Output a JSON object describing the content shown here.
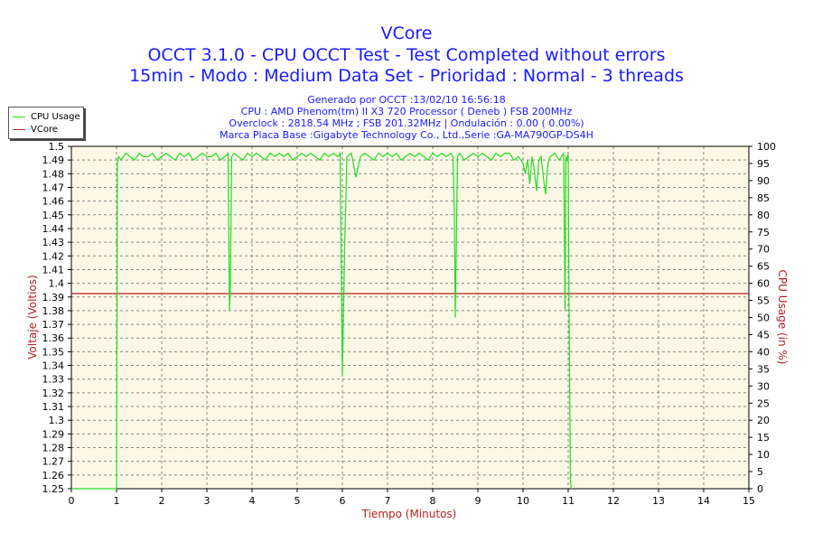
{
  "chart_data": {
    "type": "line",
    "title": "VCore",
    "subtitle_lines": [
      "OCCT 3.1.0 - CPU OCCT Test - Test Completed without errors",
      "15min - Modo : Medium Data Set - Prioridad : Normal - 3 threads"
    ],
    "info_lines": [
      "Generado por OCCT :13/02/10 16:56:18",
      "CPU : AMD Phenom(tm) II X3 720 Processor ( Deneb ) FSB 200MHz",
      "Overclock : 2818.54 MHz ; FSB 201.32MHz | Ondulación : 0.00 ( 0.00%)",
      "Marca Placa Base :Gigabyte Technology Co., Ltd.,Serie :GA-MA790GP-DS4H"
    ],
    "xlabel": "Tiempo (Minutos)",
    "ylabel_left": "Voltaje (Voltios)",
    "ylabel_right": "CPU Usage (in %)",
    "xlim": [
      0,
      15
    ],
    "ylim_left": [
      1.25,
      1.5
    ],
    "ylim_right": [
      0,
      100
    ],
    "x_ticks": [
      "0",
      "1",
      "2",
      "3",
      "4",
      "5",
      "6",
      "7",
      "8",
      "9",
      "10",
      "11",
      "12",
      "13",
      "14",
      "15"
    ],
    "y_ticks_left": [
      "1.25",
      "1.26",
      "1.27",
      "1.28",
      "1.29",
      "1.3",
      "1.31",
      "1.32",
      "1.33",
      "1.34",
      "1.35",
      "1.36",
      "1.37",
      "1.38",
      "1.39",
      "1.4",
      "1.41",
      "1.42",
      "1.43",
      "1.44",
      "1.45",
      "1.46",
      "1.47",
      "1.48",
      "1.49",
      "1.5"
    ],
    "y_ticks_right": [
      "0",
      "5",
      "10",
      "15",
      "20",
      "25",
      "30",
      "35",
      "40",
      "45",
      "50",
      "55",
      "60",
      "65",
      "70",
      "75",
      "80",
      "85",
      "90",
      "95",
      "100"
    ],
    "grid": true,
    "legend_position": "top-left",
    "colors": {
      "cpu": "#22dd22",
      "vcore": "#b22222",
      "text": "#1a1aff",
      "axis_label": "#b22222",
      "plot_bg": "#fcf8e6"
    },
    "series": [
      {
        "name": "CPU Usage",
        "axis": "right",
        "x": [
          0,
          1,
          1.02,
          1.05,
          1.1,
          1.2,
          1.3,
          1.4,
          1.5,
          1.6,
          1.7,
          1.8,
          1.9,
          2.0,
          2.1,
          2.2,
          2.3,
          2.4,
          2.5,
          2.6,
          2.7,
          2.8,
          2.9,
          3.0,
          3.1,
          3.2,
          3.3,
          3.4,
          3.47,
          3.5,
          3.52,
          3.55,
          3.6,
          3.7,
          3.8,
          3.9,
          4.0,
          4.1,
          4.2,
          4.3,
          4.4,
          4.5,
          4.6,
          4.7,
          4.8,
          4.9,
          5.0,
          5.1,
          5.2,
          5.3,
          5.4,
          5.5,
          5.6,
          5.7,
          5.8,
          5.9,
          5.95,
          5.98,
          6.0,
          6.05,
          6.1,
          6.2,
          6.3,
          6.4,
          6.5,
          6.6,
          6.7,
          6.8,
          6.9,
          7.0,
          7.1,
          7.2,
          7.3,
          7.4,
          7.5,
          7.6,
          7.7,
          7.8,
          7.9,
          8.0,
          8.1,
          8.2,
          8.3,
          8.4,
          8.45,
          8.48,
          8.5,
          8.55,
          8.6,
          8.7,
          8.8,
          8.9,
          9.0,
          9.1,
          9.2,
          9.3,
          9.4,
          9.5,
          9.6,
          9.7,
          9.8,
          9.9,
          10.0,
          10.05,
          10.1,
          10.15,
          10.2,
          10.25,
          10.3,
          10.35,
          10.4,
          10.45,
          10.5,
          10.55,
          10.6,
          10.7,
          10.8,
          10.85,
          10.9,
          10.93,
          10.95,
          10.98,
          11.0,
          11.02,
          11.05,
          11.07
        ],
        "values": [
          0,
          0,
          95,
          97,
          96,
          98,
          97,
          96,
          98,
          97,
          97,
          98,
          96,
          97,
          98,
          97,
          96,
          98,
          97,
          98,
          96,
          97,
          98,
          97,
          97,
          98,
          96,
          97,
          98,
          52,
          60,
          97,
          98,
          97,
          96,
          98,
          97,
          98,
          97,
          96,
          98,
          97,
          98,
          97,
          98,
          96,
          97,
          98,
          97,
          98,
          97,
          96,
          98,
          97,
          98,
          97,
          98,
          60,
          33,
          70,
          97,
          98,
          91,
          97,
          98,
          97,
          96,
          98,
          97,
          98,
          97,
          98,
          96,
          97,
          98,
          97,
          98,
          97,
          96,
          98,
          97,
          98,
          97,
          98,
          97,
          80,
          50,
          97,
          98,
          96,
          97,
          98,
          97,
          98,
          97,
          96,
          98,
          97,
          98,
          98,
          96,
          97,
          95,
          92,
          96,
          89,
          97,
          93,
          87,
          96,
          97,
          91,
          86,
          95,
          97,
          98,
          96,
          97,
          98,
          52,
          97,
          96,
          98,
          50,
          2,
          0
        ]
      },
      {
        "name": "VCore",
        "axis": "left",
        "x": [
          0,
          15
        ],
        "values": [
          1.3925,
          1.3925
        ]
      }
    ]
  }
}
